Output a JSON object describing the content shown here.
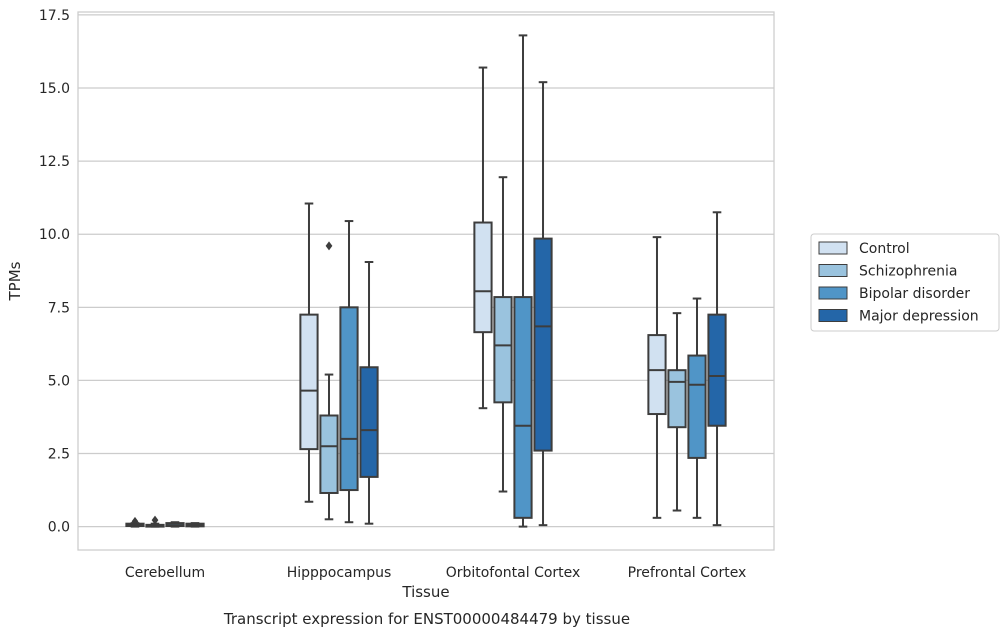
{
  "chart_data": {
    "type": "box",
    "title": "",
    "caption": "Transcript expression for ENST00000484479 by tissue",
    "xlabel": "Tissue",
    "ylabel": "TPMs",
    "ylim": [
      -0.8,
      17.6
    ],
    "yticks": [
      0.0,
      2.5,
      5.0,
      7.5,
      10.0,
      12.5,
      15.0,
      17.5
    ],
    "ytick_labels": [
      "0.0",
      "2.5",
      "5.0",
      "7.5",
      "10.0",
      "12.5",
      "15.0",
      "17.5"
    ],
    "grid": "horizontal",
    "legend_position": "right",
    "categories": [
      "Cerebellum",
      "Hipppocampus",
      "Orbitofontal Cortex",
      "Prefrontal Cortex"
    ],
    "series": [
      {
        "name": "Control",
        "color": "#d1e1f1",
        "boxes": [
          {
            "whislo": 0.0,
            "q1": 0.02,
            "med": 0.05,
            "q3": 0.1,
            "whishi": 0.12,
            "fliers": [
              0.18
            ]
          },
          {
            "whislo": 0.85,
            "q1": 2.65,
            "med": 4.65,
            "q3": 7.25,
            "whishi": 11.05,
            "fliers": []
          },
          {
            "whislo": 4.05,
            "q1": 6.65,
            "med": 8.05,
            "q3": 10.4,
            "whishi": 15.7,
            "fliers": []
          },
          {
            "whislo": 0.3,
            "q1": 3.85,
            "med": 5.35,
            "q3": 6.55,
            "whishi": 9.9,
            "fliers": []
          }
        ]
      },
      {
        "name": "Schizophrenia",
        "color": "#9ac3de",
        "boxes": [
          {
            "whislo": 0.0,
            "q1": 0.0,
            "med": 0.02,
            "q3": 0.06,
            "whishi": 0.1,
            "fliers": [
              0.22
            ]
          },
          {
            "whislo": 0.25,
            "q1": 1.15,
            "med": 2.75,
            "q3": 3.8,
            "whishi": 5.2,
            "fliers": [
              9.6
            ]
          },
          {
            "whislo": 1.2,
            "q1": 4.25,
            "med": 6.2,
            "q3": 7.85,
            "whishi": 11.95,
            "fliers": []
          },
          {
            "whislo": 0.55,
            "q1": 3.4,
            "med": 4.95,
            "q3": 5.35,
            "whishi": 7.3,
            "fliers": []
          }
        ]
      },
      {
        "name": "Bipolar disorder",
        "color": "#5095c7",
        "boxes": [
          {
            "whislo": 0.0,
            "q1": 0.02,
            "med": 0.05,
            "q3": 0.12,
            "whishi": 0.15,
            "fliers": []
          },
          {
            "whislo": 0.15,
            "q1": 1.25,
            "med": 3.0,
            "q3": 7.5,
            "whishi": 10.45,
            "fliers": []
          },
          {
            "whislo": 0.0,
            "q1": 0.3,
            "med": 3.45,
            "q3": 7.85,
            "whishi": 16.8,
            "fliers": []
          },
          {
            "whislo": 0.3,
            "q1": 2.35,
            "med": 4.85,
            "q3": 5.85,
            "whishi": 7.8,
            "fliers": []
          }
        ]
      },
      {
        "name": "Major depression",
        "color": "#2466a8",
        "boxes": [
          {
            "whislo": 0.0,
            "q1": 0.01,
            "med": 0.04,
            "q3": 0.1,
            "whishi": 0.12,
            "fliers": []
          },
          {
            "whislo": 0.1,
            "q1": 1.7,
            "med": 3.3,
            "q3": 5.45,
            "whishi": 9.05,
            "fliers": []
          },
          {
            "whislo": 0.05,
            "q1": 2.6,
            "med": 6.85,
            "q3": 9.85,
            "whishi": 15.2,
            "fliers": []
          },
          {
            "whislo": 0.05,
            "q1": 3.45,
            "med": 5.15,
            "q3": 7.25,
            "whishi": 10.75,
            "fliers": []
          }
        ]
      }
    ]
  }
}
